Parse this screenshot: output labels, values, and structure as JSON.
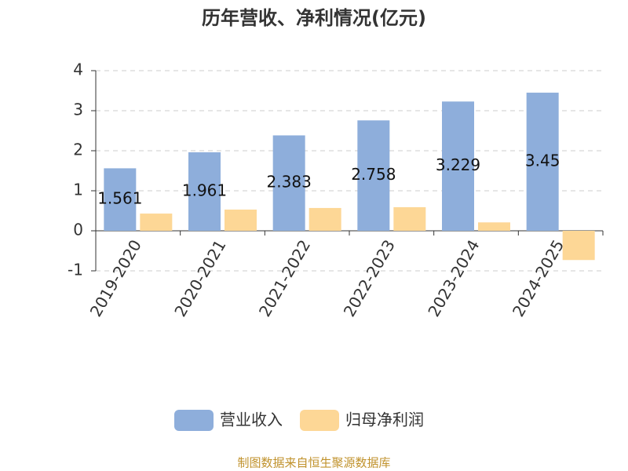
{
  "chart_data": {
    "type": "bar",
    "title": "历年营收、净利情况(亿元)",
    "categories": [
      "2019-2020",
      "2020-2021",
      "2021-2022",
      "2022-2023",
      "2023-2024",
      "2024-2025"
    ],
    "series": [
      {
        "name": "营业收入",
        "color": "#8eaedb",
        "values": [
          1.561,
          1.961,
          2.383,
          2.758,
          3.229,
          3.45
        ]
      },
      {
        "name": "归母净利润",
        "color": "#fdd796",
        "values": [
          0.43,
          0.53,
          0.57,
          0.59,
          0.21,
          -0.73
        ]
      }
    ],
    "ylim": [
      -1,
      4
    ],
    "yticks": [
      -1,
      0,
      1,
      2,
      3,
      4
    ],
    "grid": true,
    "footer": "制图数据来自恒生聚源数据库"
  }
}
